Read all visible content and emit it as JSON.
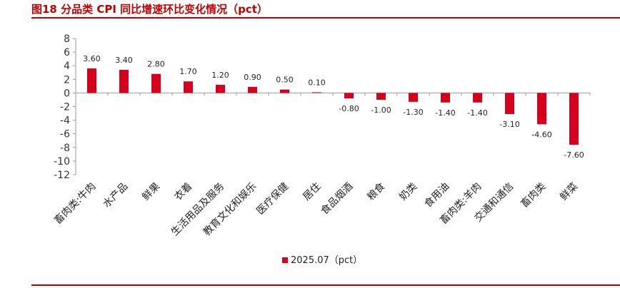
{
  "page_title": "图18 分品类 CPI 同比增速环比变化情况（pct）",
  "colors": {
    "accent": "#c00000",
    "bar": "#d6001c",
    "axis": "#999999"
  },
  "chart_data": {
    "type": "bar",
    "categories": [
      "畜肉类:牛肉",
      "水产品",
      "鲜果",
      "衣着",
      "生活用品及服务",
      "教育文化和娱乐",
      "医疗保健",
      "居住",
      "食品烟酒",
      "粮食",
      "奶类",
      "食用油",
      "畜肉类:羊肉",
      "交通和通信",
      "畜肉类",
      "鲜菜"
    ],
    "series": [
      {
        "name": "2025.07（pct）",
        "values": [
          3.6,
          3.4,
          2.8,
          1.7,
          1.2,
          0.9,
          0.5,
          0.1,
          -0.8,
          -1.0,
          -1.3,
          -1.4,
          -1.4,
          -3.1,
          -4.6,
          -7.6
        ],
        "labels": [
          "3.60",
          "3.40",
          "2.80",
          "1.70",
          "1.20",
          "0.90",
          "0.50",
          "0.10",
          "-0.80",
          "-1.00",
          "-1.30",
          "-1.40",
          "-1.40",
          "-3.10",
          "-4.60",
          "-7.60"
        ]
      }
    ],
    "ylim": [
      -12,
      8
    ],
    "yticks": [
      "8",
      "6",
      "4",
      "2",
      "0",
      "-2",
      "-4",
      "-6",
      "-8",
      "-10",
      "-12"
    ],
    "legend": "bottom-center",
    "grid": false
  }
}
